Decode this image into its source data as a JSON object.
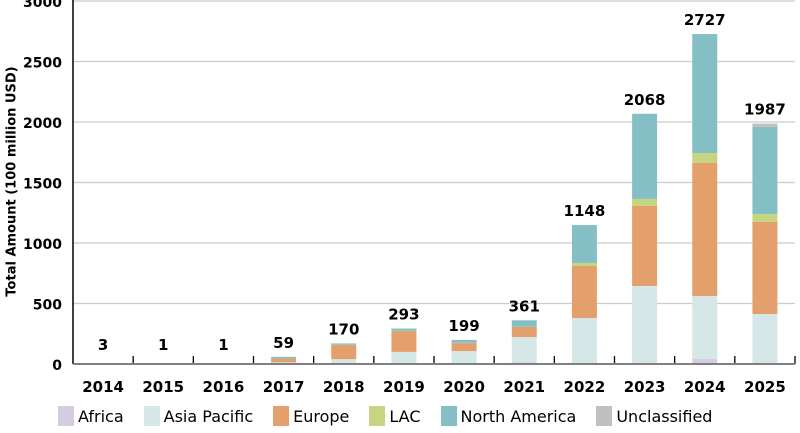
{
  "chart_data": {
    "type": "bar",
    "stacked": true,
    "title": "",
    "xlabel": "",
    "ylabel": "Total Amount (100 million USD)",
    "ylim": [
      0,
      3000
    ],
    "yticks": [
      0,
      500,
      1000,
      1500,
      2000,
      2500,
      3000
    ],
    "grid": true,
    "legend_position": "bottom",
    "categories": [
      "2014",
      "2015",
      "2016",
      "2017",
      "2018",
      "2019",
      "2020",
      "2021",
      "2022",
      "2023",
      "2024",
      "2025"
    ],
    "totals": [
      3,
      1,
      1,
      59,
      170,
      293,
      199,
      361,
      1148,
      2068,
      2727,
      1987
    ],
    "series": [
      {
        "name": "Africa",
        "color": "#d5cce2",
        "values": [
          0,
          0,
          0,
          0,
          2,
          2,
          2,
          15,
          5,
          10,
          41,
          10
        ]
      },
      {
        "name": "Asia Pacific",
        "color": "#d5e7e7",
        "values": [
          1,
          1,
          1,
          14,
          38,
          98,
          105,
          208,
          375,
          635,
          521,
          403
        ]
      },
      {
        "name": "Europe",
        "color": "#e3a06c",
        "values": [
          2,
          0,
          0,
          31,
          117,
          173,
          66,
          83,
          430,
          661,
          1099,
          761
        ]
      },
      {
        "name": "LAC",
        "color": "#c6d580",
        "values": [
          0,
          0,
          0,
          0,
          2,
          2,
          2,
          2,
          25,
          58,
          83,
          66
        ]
      },
      {
        "name": "North America",
        "color": "#84bfc6",
        "values": [
          0,
          0,
          0,
          14,
          11,
          18,
          24,
          53,
          313,
          704,
          983,
          719
        ]
      },
      {
        "name": "Unclassified",
        "color": "#c0c0c0",
        "values": [
          0,
          0,
          0,
          0,
          0,
          0,
          0,
          0,
          0,
          0,
          0,
          28
        ]
      }
    ]
  }
}
